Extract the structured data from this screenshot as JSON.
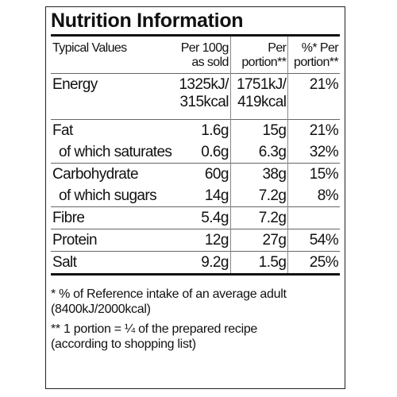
{
  "title": "Nutrition Information",
  "table": {
    "header": [
      [
        "Typical Values"
      ],
      [
        "Per 100g",
        "as sold"
      ],
      [
        "Per",
        "portion**"
      ],
      [
        "%* Per",
        "portion**"
      ]
    ],
    "groups": [
      [
        [
          [
            "Energy"
          ],
          [
            "1325kJ/",
            "315kcal"
          ],
          [
            "1751kJ/",
            "419kcal"
          ],
          [
            "21%"
          ]
        ]
      ],
      [
        [
          [
            "Fat"
          ],
          [
            "1.6g"
          ],
          [
            "15g"
          ],
          [
            "21%"
          ]
        ],
        [
          [
            "of which saturates"
          ],
          [
            "0.6g"
          ],
          [
            "6.3g"
          ],
          [
            "32%"
          ]
        ]
      ],
      [
        [
          [
            "Carbohydrate"
          ],
          [
            "60g"
          ],
          [
            "38g"
          ],
          [
            "15%"
          ]
        ],
        [
          [
            "of which sugars"
          ],
          [
            "14g"
          ],
          [
            "7.2g"
          ],
          [
            "8%"
          ]
        ]
      ],
      [
        [
          [
            "Fibre"
          ],
          [
            "5.4g"
          ],
          [
            "7.2g"
          ]
        ]
      ],
      [
        [
          [
            "Protein"
          ],
          [
            "12g"
          ],
          [
            "27g"
          ],
          [
            "54%"
          ]
        ]
      ],
      [
        [
          [
            "Salt"
          ],
          [
            "9.2g"
          ],
          [
            "1.5g"
          ],
          [
            "25%"
          ]
        ]
      ]
    ]
  },
  "footnotes": [
    [
      "*  % of Reference intake of an average adult",
      "(8400kJ/2000kcal)"
    ],
    [
      "** 1 portion = ¼ of the prepared recipe",
      "(according to shopping list)"
    ]
  ]
}
